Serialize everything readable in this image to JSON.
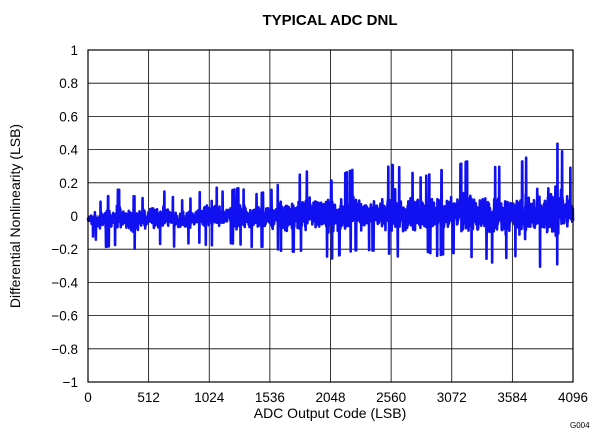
{
  "figure_id": "G004",
  "chart_data": {
    "type": "line",
    "title": "TYPICAL ADC DNL",
    "xlabel": "ADC Output Code (LSB)",
    "ylabel": "Differential Nonlinearity (LSB)",
    "xlim": [
      0,
      4096
    ],
    "ylim": [
      -1,
      1
    ],
    "x_ticks": [
      0,
      512,
      1024,
      1536,
      2048,
      2560,
      3072,
      3584,
      4096
    ],
    "y_ticks": [
      -1,
      -0.8,
      -0.6,
      -0.4,
      -0.2,
      0,
      0.2,
      0.4,
      0.6,
      0.8,
      1
    ],
    "x_tick_labels": [
      "0",
      "512",
      "1024",
      "1536",
      "2048",
      "2560",
      "3072",
      "3584",
      "4096"
    ],
    "y_tick_labels": [
      "−1",
      "−0.8",
      "−0.6",
      "−0.4",
      "−0.2",
      "0",
      "0.2",
      "0.4",
      "0.6",
      "0.8",
      "1"
    ],
    "grid": true,
    "legend": "none",
    "series_color": "#1010f0",
    "series": [
      {
        "x": [
          0,
          128,
          256,
          384,
          512,
          640,
          768,
          896,
          1024,
          1152,
          1280,
          1408,
          1536,
          1664,
          1792,
          1920,
          2048,
          2176,
          2304,
          2432,
          2560,
          2688,
          2816,
          2944,
          3072,
          3200,
          3328,
          3456,
          3584,
          3712,
          3840,
          3968,
          4096
        ],
        "values": [
          0.02,
          0.1,
          0.16,
          0.12,
          0.1,
          0.15,
          0.09,
          0.11,
          0.2,
          0.14,
          0.17,
          0.13,
          0.15,
          0.22,
          0.25,
          0.29,
          0.21,
          0.26,
          0.3,
          0.24,
          0.31,
          0.28,
          0.23,
          0.27,
          0.29,
          0.33,
          0.26,
          0.3,
          0.27,
          0.36,
          0.29,
          0.44,
          0.26
        ],
        "min_values": [
          -0.09,
          -0.19,
          -0.17,
          -0.2,
          -0.16,
          -0.17,
          -0.19,
          -0.15,
          -0.18,
          -0.16,
          -0.17,
          -0.19,
          -0.18,
          -0.22,
          -0.21,
          -0.19,
          -0.26,
          -0.22,
          -0.2,
          -0.21,
          -0.23,
          -0.26,
          -0.2,
          -0.24,
          -0.22,
          -0.25,
          -0.24,
          -0.3,
          -0.22,
          -0.33,
          -0.3,
          -0.29,
          -0.19
        ]
      }
    ]
  }
}
